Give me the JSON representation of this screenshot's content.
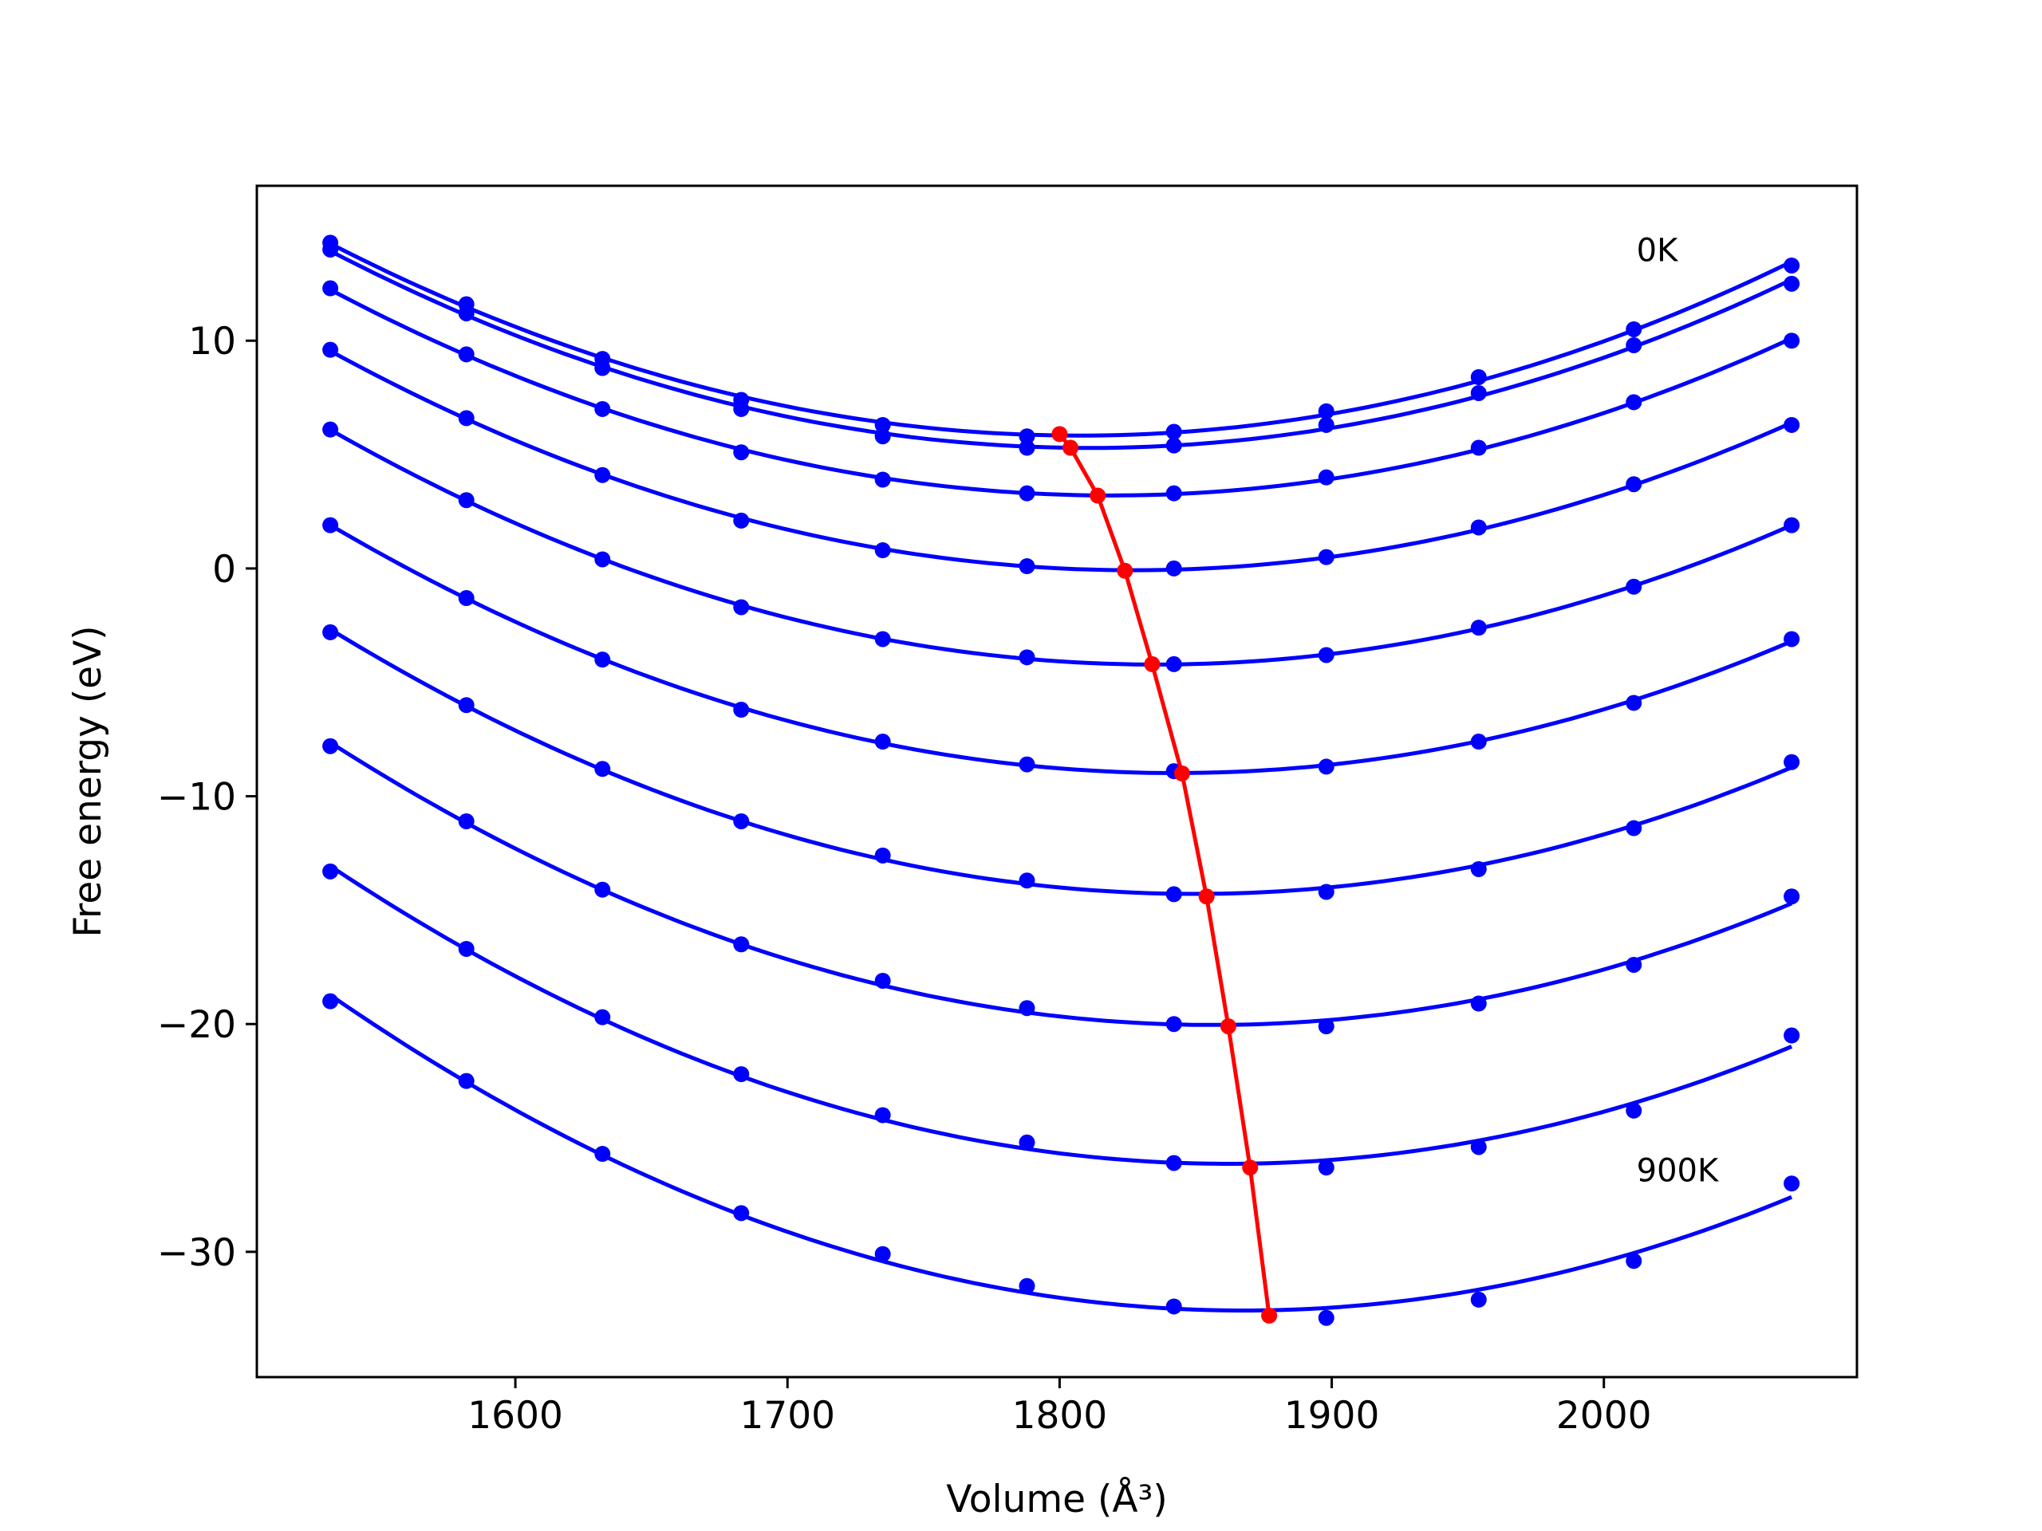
{
  "chart_data": {
    "type": "line",
    "title": "",
    "xlabel": "Volume (Å³)",
    "ylabel": "Free energy (eV)",
    "xlim": [
      1505,
      2093
    ],
    "ylim": [
      -35.5,
      16.8
    ],
    "xticks": [
      1600,
      1700,
      1800,
      1900,
      2000
    ],
    "xtick_labels": [
      "1600",
      "1700",
      "1800",
      "1900",
      "2000"
    ],
    "yticks": [
      10,
      0,
      -10,
      -20,
      -30
    ],
    "ytick_labels": [
      "10",
      "0",
      "−10",
      "−20",
      "−30"
    ],
    "grid": false,
    "legend": "none",
    "colors": {
      "curves": "#0000ff",
      "minima": "#ff0000",
      "axes": "#000000"
    },
    "annotations": [
      {
        "text": "0K",
        "x": 2012,
        "y": 13.5
      },
      {
        "text": "900K",
        "x": 2012,
        "y": -26.9
      }
    ],
    "volumes": [
      1532,
      1582,
      1632,
      1683,
      1735,
      1788,
      1842,
      1898,
      1954,
      2011,
      2069
    ],
    "series": [
      {
        "values": [
          14.3,
          11.6,
          9.2,
          7.4,
          6.3,
          5.8,
          6.0,
          6.9,
          8.4,
          10.5,
          13.3
        ],
        "min": [
          1800,
          5.9
        ]
      },
      {
        "values": [
          14.0,
          11.2,
          8.8,
          7.0,
          5.8,
          5.3,
          5.4,
          6.3,
          7.7,
          9.8,
          12.5
        ],
        "min": [
          1804,
          5.3
        ]
      },
      {
        "values": [
          12.3,
          9.4,
          7.0,
          5.1,
          3.9,
          3.3,
          3.3,
          4.0,
          5.3,
          7.3,
          10.0
        ],
        "min": [
          1814,
          3.2
        ]
      },
      {
        "values": [
          9.6,
          6.6,
          4.1,
          2.1,
          0.8,
          0.1,
          0.0,
          0.5,
          1.8,
          3.7,
          6.3
        ],
        "min": [
          1824,
          -0.1
        ]
      },
      {
        "values": [
          6.1,
          3.0,
          0.4,
          -1.7,
          -3.1,
          -3.9,
          -4.2,
          -3.8,
          -2.6,
          -0.8,
          1.9
        ],
        "min": [
          1834,
          -4.2
        ]
      },
      {
        "values": [
          1.9,
          -1.3,
          -4.0,
          -6.2,
          -7.6,
          -8.6,
          -8.9,
          -8.7,
          -7.6,
          -5.9,
          -3.1
        ],
        "min": [
          1845,
          -9.0
        ]
      },
      {
        "values": [
          -2.8,
          -6.0,
          -8.8,
          -11.1,
          -12.6,
          -13.7,
          -14.3,
          -14.2,
          -13.2,
          -11.4,
          -8.5
        ],
        "min": [
          1854,
          -14.4
        ]
      },
      {
        "values": [
          -7.8,
          -11.1,
          -14.1,
          -16.5,
          -18.1,
          -19.3,
          -20.0,
          -20.1,
          -19.1,
          -17.4,
          -14.4
        ],
        "min": [
          1862,
          -20.1
        ]
      },
      {
        "values": [
          -13.3,
          -16.7,
          -19.7,
          -22.2,
          -24.0,
          -25.2,
          -26.1,
          -26.3,
          -25.4,
          -23.8,
          -20.5
        ],
        "min": [
          1870,
          -26.3
        ]
      },
      {
        "values": [
          -19.0,
          -22.5,
          -25.7,
          -28.3,
          -30.1,
          -31.5,
          -32.4,
          -32.9,
          -32.1,
          -30.4,
          -27.0
        ],
        "min": [
          1877,
          -32.8
        ]
      }
    ]
  }
}
